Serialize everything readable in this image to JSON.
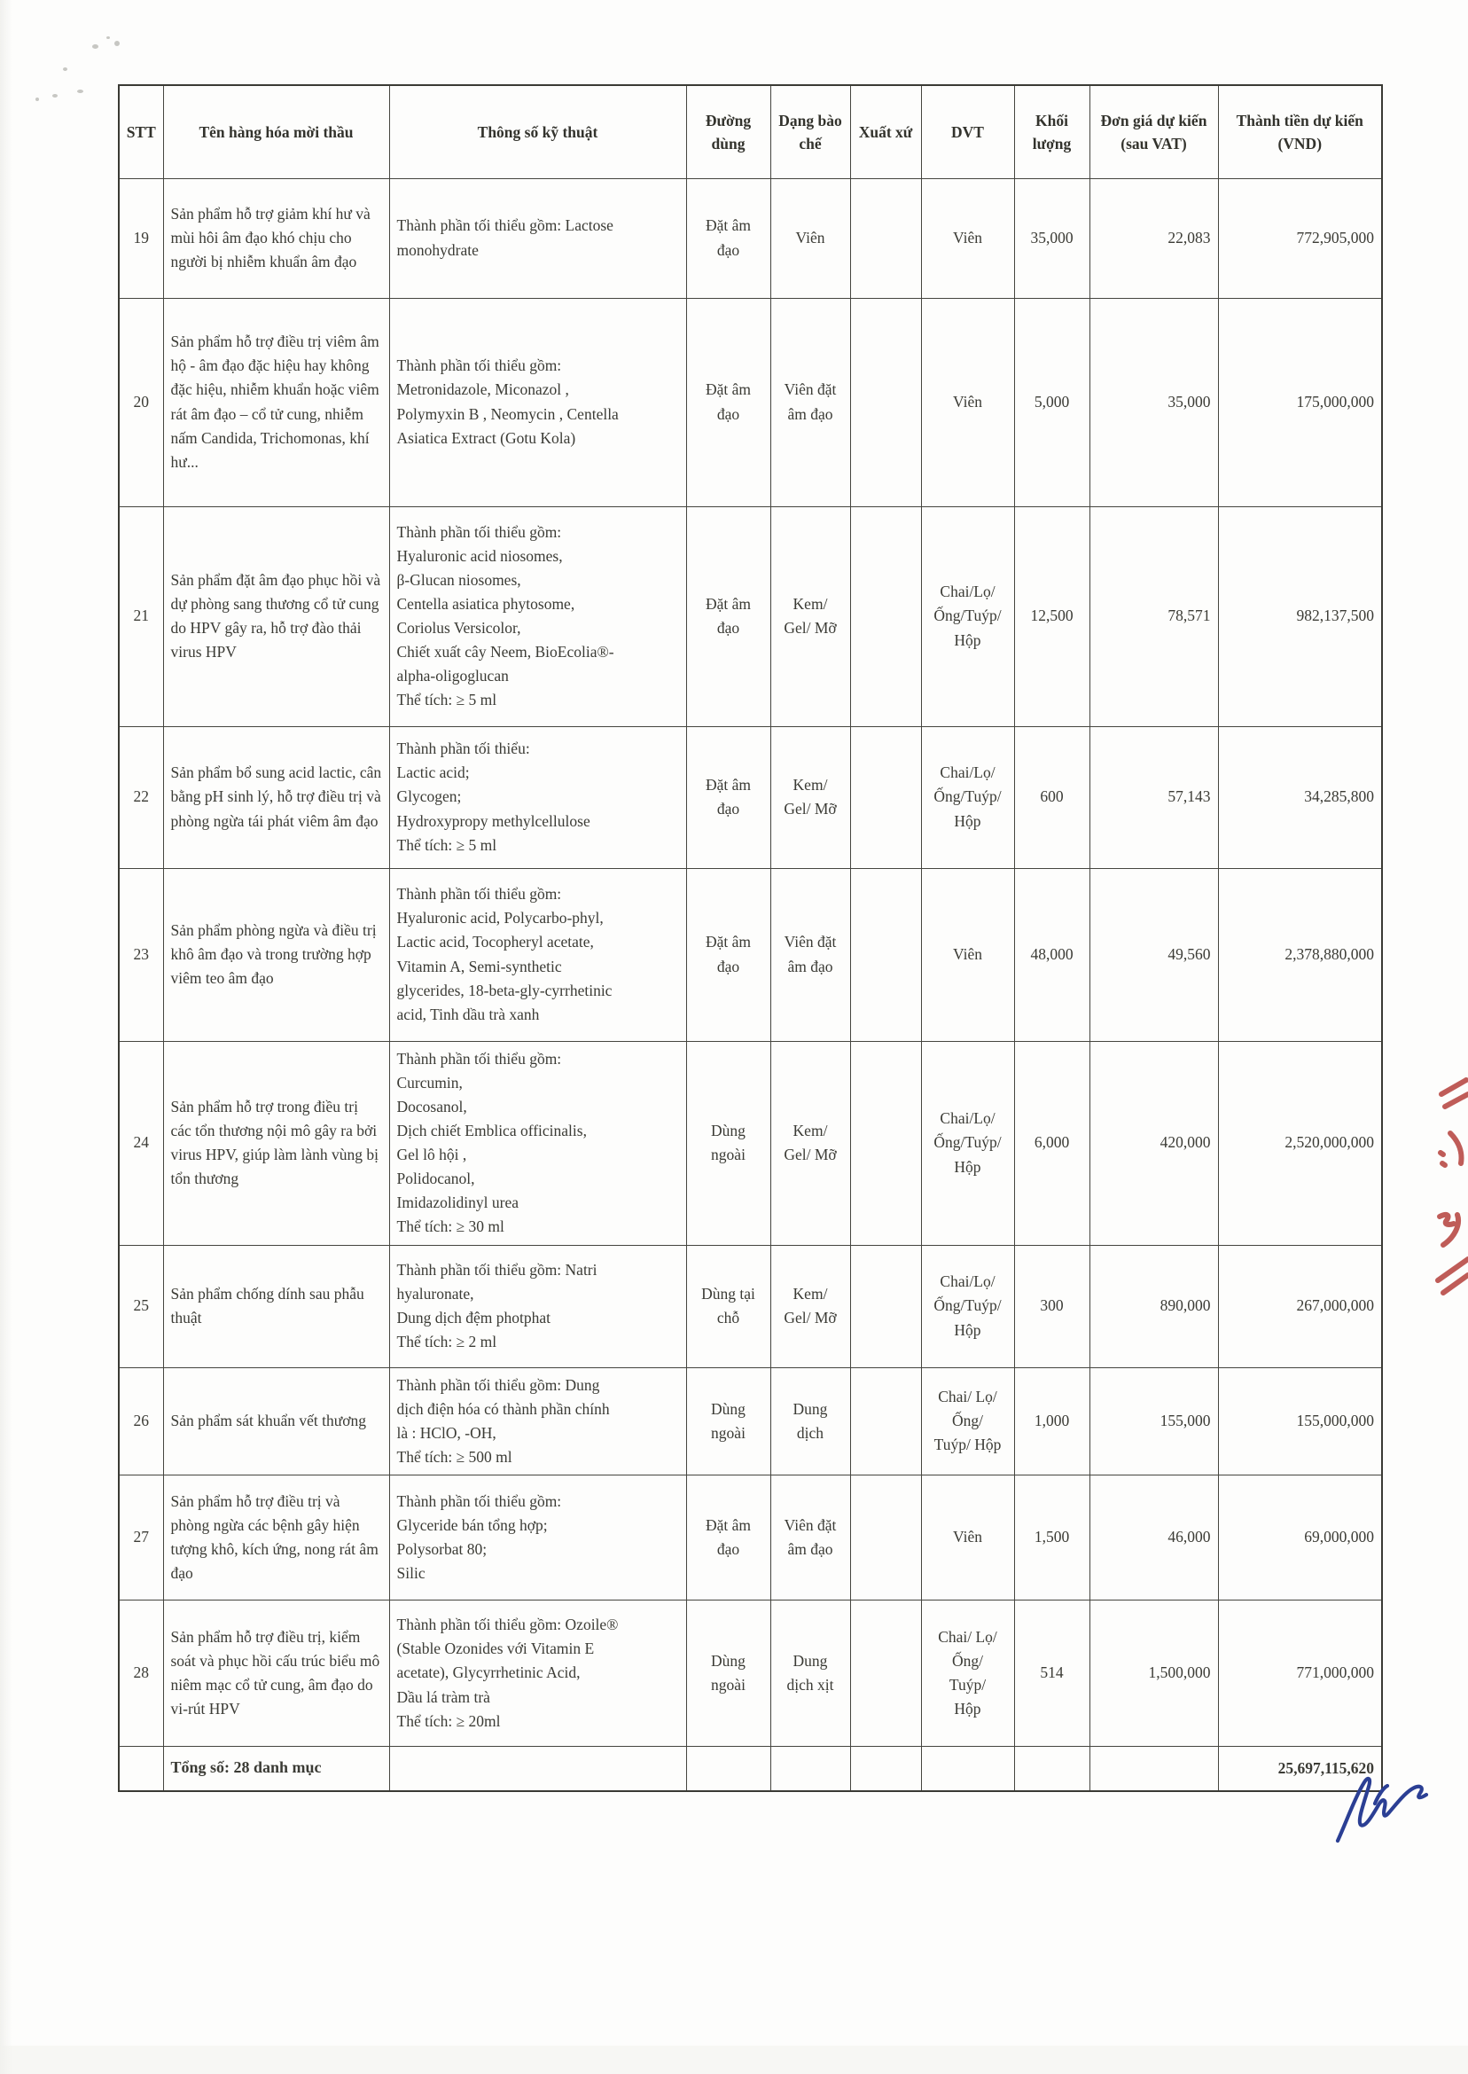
{
  "table": {
    "columns": {
      "stt": "STT",
      "name": "Tên hàng hóa mời thầu",
      "specs": "Thông số kỹ thuật",
      "route": "Đường dùng",
      "form": "Dạng bào chế",
      "origin": "Xuất xứ",
      "unit": "DVT",
      "qty": "Khối lượng",
      "unit_price": "Đơn giá dự kiến (sau VAT)",
      "total": "Thành tiền dự kiến (VND)"
    },
    "rows": [
      {
        "stt": "19",
        "name": "Sản phẩm hỗ trợ giảm khí hư và mùi hôi âm đạo khó chịu cho người bị nhiễm khuẩn âm đạo",
        "specs": "Thành phần tối thiểu gồm: Lactose\nmonohydrate",
        "route": "Đặt âm\nđạo",
        "form": "Viên",
        "origin": "",
        "unit": "Viên",
        "qty": "35,000",
        "unit_price": "22,083",
        "total": "772,905,000"
      },
      {
        "stt": "20",
        "name": "Sản phẩm hỗ trợ điều trị viêm âm hộ - âm đạo đặc hiệu hay không đặc hiệu, nhiễm khuẩn hoặc viêm rát âm đạo – cổ tử cung, nhiễm nấm Candida, Trichomonas, khí hư...",
        "specs": "Thành phần tối thiểu gồm:\nMetronidazole, Miconazol ,\nPolymyxin B , Neomycin , Centella\nAsiatica Extract (Gotu Kola)",
        "route": "Đặt âm\nđạo",
        "form": "Viên đặt\nâm đạo",
        "origin": "",
        "unit": "Viên",
        "qty": "5,000",
        "unit_price": "35,000",
        "total": "175,000,000"
      },
      {
        "stt": "21",
        "name": "Sản phẩm đặt âm đạo phục hồi và dự phòng sang thương cổ tử cung do HPV gây ra, hỗ trợ đào thải virus HPV",
        "specs": "Thành phần tối thiểu gồm:\nHyaluronic acid niosomes,\nβ-Glucan niosomes,\nCentella asiatica phytosome,\nCoriolus Versicolor,\nChiết xuất cây Neem, BioEcolia®-\nalpha-oligoglucan\nThể tích: ≥ 5 ml",
        "route": "Đặt âm\nđạo",
        "form": "Kem/\nGel/ Mỡ",
        "origin": "",
        "unit": "Chai/Lọ/\nỐng/Tuýp/\nHộp",
        "qty": "12,500",
        "unit_price": "78,571",
        "total": "982,137,500"
      },
      {
        "stt": "22",
        "name": "Sản phẩm bổ sung acid lactic, cân bằng pH sinh lý, hỗ trợ điều trị và phòng ngừa tái phát viêm âm đạo",
        "specs": "Thành phần tối thiểu:\nLactic acid;\nGlycogen;\nHydroxypropy methylcellulose\nThể tích: ≥ 5 ml",
        "route": "Đặt âm\nđạo",
        "form": "Kem/\nGel/ Mỡ",
        "origin": "",
        "unit": "Chai/Lọ/\nỐng/Tuýp/\nHộp",
        "qty": "600",
        "unit_price": "57,143",
        "total": "34,285,800"
      },
      {
        "stt": "23",
        "name": "Sản phẩm phòng ngừa và điều trị khô âm đạo và trong trường hợp viêm teo âm đạo",
        "specs": "Thành phần tối thiểu gồm:\nHyaluronic acid, Polycarbo-phyl,\nLactic acid, Tocopheryl acetate,\nVitamin A,  Semi-synthetic\nglycerides, 18-beta-gly-cyrrhetinic\nacid, Tinh dầu trà xanh",
        "route": "Đặt âm\nđạo",
        "form": "Viên đặt\nâm đạo",
        "origin": "",
        "unit": "Viên",
        "qty": "48,000",
        "unit_price": "49,560",
        "total": "2,378,880,000"
      },
      {
        "stt": "24",
        "name": "Sản phẩm hỗ trợ trong điều trị các tổn thương nội mô gây ra bởi virus HPV, giúp làm lành vùng bị tổn thương",
        "specs": "Thành phần tối thiểu gồm:\nCurcumin,\nDocosanol,\nDịch chiết Emblica officinalis,\nGel lô hội ,\nPolidocanol,\nImidazolidinyl urea\nThể tích: ≥ 30 ml",
        "route": "Dùng\nngoài",
        "form": "Kem/\nGel/ Mỡ",
        "origin": "",
        "unit": "Chai/Lọ/\nỐng/Tuýp/\nHộp",
        "qty": "6,000",
        "unit_price": "420,000",
        "total": "2,520,000,000"
      },
      {
        "stt": "25",
        "name": "Sản phẩm chống dính sau phẫu thuật",
        "specs": "Thành phần tối thiểu gồm: Natri\nhyaluronate,\nDung dịch đệm photphat\nThể tích: ≥ 2 ml",
        "route": "Dùng tại\nchỗ",
        "form": "Kem/\nGel/ Mỡ",
        "origin": "",
        "unit": "Chai/Lọ/\nỐng/Tuýp/\nHộp",
        "qty": "300",
        "unit_price": "890,000",
        "total": "267,000,000"
      },
      {
        "stt": "26",
        "name": "Sản phẩm sát khuẩn vết thương",
        "specs": "Thành phần tối thiểu gồm: Dung\ndịch điện hóa có thành phần chính\nlà : HClO, -OH,\nThể tích: ≥ 500 ml",
        "route": "Dùng\nngoài",
        "form": "Dung\ndịch",
        "origin": "",
        "unit": "Chai/ Lọ/\nỐng/\nTuýp/ Hộp",
        "qty": "1,000",
        "unit_price": "155,000",
        "total": "155,000,000"
      },
      {
        "stt": "27",
        "name": "Sản phẩm hỗ trợ điều trị và phòng ngừa các bệnh gây hiện tượng khô, kích ứng, nong rát âm đạo",
        "specs": "Thành phần tối thiểu gồm:\nGlyceride bán tổng hợp;\nPolysorbat 80;\nSilic",
        "route": "Đặt âm\nđạo",
        "form": "Viên đặt\nâm đạo",
        "origin": "",
        "unit": "Viên",
        "qty": "1,500",
        "unit_price": "46,000",
        "total": "69,000,000"
      },
      {
        "stt": "28",
        "name": "Sản phẩm hỗ trợ điều trị, kiểm soát và phục hồi cấu trúc biểu mô niêm mạc cổ tử cung, âm đạo do vi-rút HPV",
        "specs": "Thành phần tối thiểu gồm: Ozoile®\n(Stable Ozonides với Vitamin E\nacetate), Glycyrrhetinic Acid,\nDầu lá tràm trà\nThể tích: ≥ 20ml",
        "route": "Dùng\nngoài",
        "form": "Dung\ndịch xịt",
        "origin": "",
        "unit": "Chai/ Lọ/\nỐng/\nTuýp/\nHộp",
        "qty": "514",
        "unit_price": "1,500,000",
        "total": "771,000,000"
      }
    ],
    "footer": {
      "label": "Tổng số: 28 danh mục",
      "total": "25,697,115,620"
    }
  },
  "annotations": {
    "signature_ink_color": "#2b3f94",
    "red_pen_color": "#b5413c"
  }
}
